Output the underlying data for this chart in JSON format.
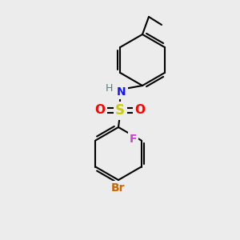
{
  "bg_color": "#ececec",
  "bond_color": "#000000",
  "bond_width": 1.5,
  "atom_labels": {
    "N": {
      "color": "#1414ff",
      "fontsize": 10,
      "fontweight": "bold"
    },
    "H": {
      "color": "#3a8a8a",
      "fontsize": 9,
      "fontweight": "normal"
    },
    "S": {
      "color": "#cccc00",
      "fontsize": 12,
      "fontweight": "bold"
    },
    "O": {
      "color": "#ff0000",
      "fontsize": 11,
      "fontweight": "bold"
    },
    "F": {
      "color": "#cc44cc",
      "fontsize": 10,
      "fontweight": "bold"
    },
    "Br": {
      "color": "#cc6600",
      "fontsize": 10,
      "fontweight": "bold"
    }
  },
  "figsize": [
    3.0,
    3.0
  ],
  "dpi": 100
}
